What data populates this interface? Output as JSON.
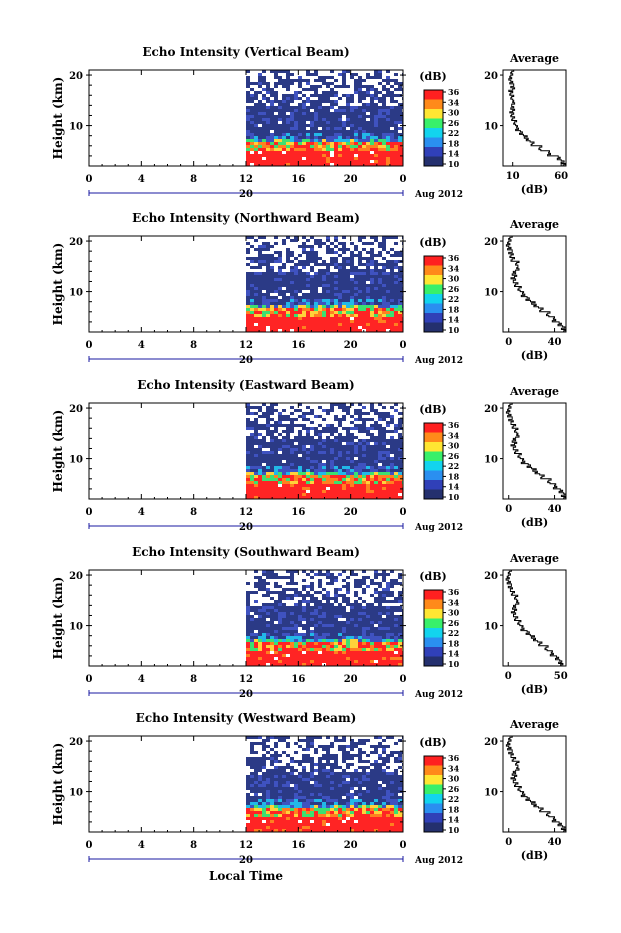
{
  "figure": {
    "bottom_xlabel": "Local Time",
    "date_label": "Aug 2012",
    "ylabel": "Height (km)",
    "average_title": "Average",
    "profile_xlabel": "(dB)",
    "colorbar_label": "(dB)",
    "colorbar_ticks": [
      "36",
      "34",
      "30",
      "26",
      "22",
      "18",
      "14",
      "10"
    ],
    "colorbar_colors": [
      "#ff2020",
      "#ff8a1a",
      "#ffe632",
      "#38f06a",
      "#12d4ee",
      "#2a8ff0",
      "#3040b8",
      "#24306e"
    ],
    "heatmap_colors": {
      "background": "#ffffff",
      "low": "#2b3a86",
      "mid_low": "#3f52c0",
      "mid": "#22b8e8",
      "mid_high": "#3ce070",
      "high": "#ffd23a",
      "very_high": "#ff8020",
      "top": "#ff2424"
    },
    "date_marker_color": "#1a1aa0"
  },
  "chart_data": [
    {
      "type": "heatmap",
      "title": "Echo Intensity (Vertical Beam)",
      "xlabel": "Local Time",
      "ylabel": "Height (km)",
      "xticks": [
        "0",
        "4",
        "8",
        "12",
        "16",
        "20",
        "0"
      ],
      "date_tick": "20",
      "yticks": [
        "20",
        "10"
      ],
      "colorbar_label": "(dB)",
      "colorbar_ticks": [
        "36",
        "34",
        "30",
        "26",
        "22",
        "18",
        "14",
        "10"
      ],
      "data_start_hour": 12,
      "profile": {
        "title": "Average",
        "xlabel": "(dB)",
        "xticks": [
          "10",
          "60"
        ],
        "xlim": [
          0,
          65
        ],
        "heights_km": [
          2,
          3,
          4,
          5,
          6,
          7,
          8,
          9,
          10,
          11,
          12,
          13,
          14,
          15,
          16,
          17,
          18,
          19,
          20
        ],
        "values_db": [
          62,
          58,
          48,
          38,
          30,
          24,
          19,
          15,
          12,
          10,
          9,
          10,
          11,
          9,
          8,
          10,
          9,
          8,
          9
        ]
      }
    },
    {
      "type": "heatmap",
      "title": "Echo Intensity (Northward Beam)",
      "xlabel": "Local Time",
      "ylabel": "Height (km)",
      "xticks": [
        "0",
        "4",
        "8",
        "12",
        "16",
        "20",
        "0"
      ],
      "date_tick": "20",
      "yticks": [
        "20",
        "10"
      ],
      "colorbar_label": "(dB)",
      "colorbar_ticks": [
        "36",
        "34",
        "30",
        "26",
        "22",
        "18",
        "14",
        "10"
      ],
      "data_start_hour": 12,
      "profile": {
        "title": "Average",
        "xlabel": "(dB)",
        "xticks": [
          "0",
          "40"
        ],
        "xlim": [
          -5,
          50
        ],
        "heights_km": [
          2,
          3,
          4,
          5,
          6,
          7,
          8,
          9,
          10,
          11,
          12,
          13,
          14,
          15,
          16,
          17,
          18,
          19,
          20
        ],
        "values_db": [
          48,
          45,
          40,
          34,
          28,
          22,
          17,
          13,
          9,
          6,
          4,
          5,
          8,
          7,
          3,
          2,
          1,
          0,
          1
        ]
      }
    },
    {
      "type": "heatmap",
      "title": "Echo Intensity (Eastward Beam)",
      "xlabel": "Local Time",
      "ylabel": "Height (km)",
      "xticks": [
        "0",
        "4",
        "8",
        "12",
        "16",
        "20",
        "0"
      ],
      "date_tick": "20",
      "yticks": [
        "20",
        "10"
      ],
      "colorbar_label": "(dB)",
      "colorbar_ticks": [
        "36",
        "34",
        "30",
        "26",
        "22",
        "18",
        "14",
        "10"
      ],
      "data_start_hour": 12,
      "profile": {
        "title": "Average",
        "xlabel": "(dB)",
        "xticks": [
          "0",
          "40"
        ],
        "xlim": [
          -5,
          50
        ],
        "heights_km": [
          2,
          3,
          4,
          5,
          6,
          7,
          8,
          9,
          10,
          11,
          12,
          13,
          14,
          15,
          16,
          17,
          18,
          19,
          20
        ],
        "values_db": [
          48,
          46,
          41,
          35,
          29,
          23,
          18,
          13,
          9,
          6,
          4,
          5,
          8,
          6,
          4,
          2,
          1,
          0,
          1
        ]
      }
    },
    {
      "type": "heatmap",
      "title": "Echo Intensity (Southward Beam)",
      "xlabel": "Local Time",
      "ylabel": "Height (km)",
      "xticks": [
        "0",
        "4",
        "8",
        "12",
        "16",
        "20",
        "0"
      ],
      "date_tick": "20",
      "yticks": [
        "20",
        "10"
      ],
      "colorbar_label": "(dB)",
      "colorbar_ticks": [
        "36",
        "34",
        "30",
        "26",
        "22",
        "18",
        "14",
        "10"
      ],
      "data_start_hour": 12,
      "profile": {
        "title": "Average",
        "xlabel": "(dB)",
        "xticks": [
          "0",
          "50"
        ],
        "xlim": [
          -5,
          55
        ],
        "heights_km": [
          2,
          3,
          4,
          5,
          6,
          7,
          8,
          9,
          10,
          11,
          12,
          13,
          14,
          15,
          16,
          17,
          18,
          19,
          20
        ],
        "values_db": [
          50,
          47,
          42,
          36,
          30,
          24,
          19,
          14,
          10,
          7,
          5,
          6,
          9,
          7,
          4,
          2,
          1,
          0,
          1
        ]
      }
    },
    {
      "type": "heatmap",
      "title": "Echo Intensity (Westward Beam)",
      "xlabel": "Local Time",
      "ylabel": "Height (km)",
      "xticks": [
        "0",
        "4",
        "8",
        "12",
        "16",
        "20",
        "0"
      ],
      "date_tick": "20",
      "yticks": [
        "20",
        "10"
      ],
      "colorbar_label": "(dB)",
      "colorbar_ticks": [
        "36",
        "34",
        "30",
        "26",
        "22",
        "18",
        "14",
        "10"
      ],
      "data_start_hour": 12,
      "profile": {
        "title": "Average",
        "xlabel": "(dB)",
        "xticks": [
          "0",
          "40"
        ],
        "xlim": [
          -5,
          50
        ],
        "heights_km": [
          2,
          3,
          4,
          5,
          6,
          7,
          8,
          9,
          10,
          11,
          12,
          13,
          14,
          15,
          16,
          17,
          18,
          19,
          20
        ],
        "values_db": [
          48,
          45,
          40,
          34,
          28,
          22,
          17,
          13,
          9,
          6,
          4,
          5,
          8,
          7,
          4,
          2,
          1,
          0,
          1
        ]
      }
    }
  ]
}
